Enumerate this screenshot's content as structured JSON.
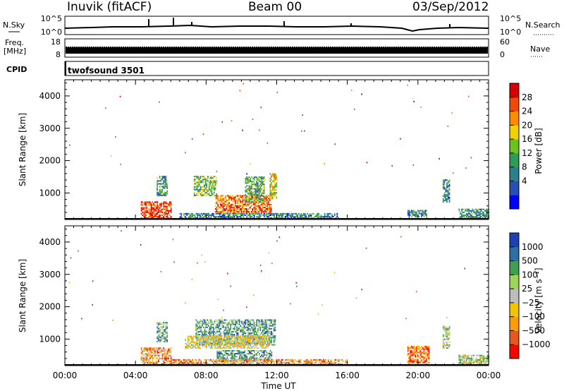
{
  "header": {
    "station": "Inuvik (fitACF)",
    "beam": "Beam 00",
    "date": "03/Sep/2012"
  },
  "noise_panel": {
    "left_label": "N.Sky",
    "left_ticks": [
      "10^5",
      "10^0"
    ],
    "right_ticks": [
      "10^5",
      "10^0"
    ],
    "right_label": "N.Search"
  },
  "freq_panel": {
    "left_label_line1": "Freq.",
    "left_label_line2": "[MHz]",
    "left_ticks": [
      "18",
      "8"
    ],
    "right_ticks": [
      "60",
      "0"
    ],
    "right_label": "Nave"
  },
  "cpid_panel": {
    "label": "CPID",
    "program": "twofsound 3501"
  },
  "time_axis": {
    "title": "Time UT",
    "hours": [
      0,
      4,
      8,
      12,
      16,
      20,
      24
    ],
    "labels": [
      "00:00",
      "04:00",
      "08:00",
      "12:00",
      "16:00",
      "20:00",
      "00:00"
    ]
  },
  "range_axis": {
    "title": "Slant Range [km]",
    "ticks": [
      1000,
      2000,
      3000,
      4000
    ],
    "tick_labels": [
      "1000",
      "2000",
      "3000",
      "4000"
    ],
    "range_km": [
      180,
      4500
    ]
  },
  "chart_data": [
    {
      "type": "heatmap",
      "quantity": "Power",
      "xlabel": "Time UT",
      "ylabel": "Slant Range [km]",
      "xlim_hours": [
        0,
        24
      ],
      "ylim_km": [
        180,
        4500
      ],
      "colorbar": {
        "title": "Power [dB]",
        "tick_labels": [
          "28",
          "24",
          "20",
          "16",
          "12",
          "8",
          "4"
        ],
        "colors": [
          "#0000ff",
          "#2a4fb4",
          "#2c7f8c",
          "#2d9d55",
          "#6cc21c",
          "#f4d000",
          "#ff8b00",
          "#f04a08",
          "#d80000"
        ]
      },
      "regions": [
        {
          "t": [
            4.3,
            6.0
          ],
          "r": [
            200,
            700
          ],
          "level": 0.9
        },
        {
          "t": [
            5.2,
            5.8
          ],
          "r": [
            900,
            1500
          ],
          "level": 0.35
        },
        {
          "t": [
            7.3,
            8.6
          ],
          "r": [
            900,
            1500
          ],
          "level": 0.45
        },
        {
          "t": [
            8.5,
            11.7
          ],
          "r": [
            350,
            900
          ],
          "level": 0.8
        },
        {
          "t": [
            10.2,
            11.3
          ],
          "r": [
            700,
            1500
          ],
          "level": 0.4
        },
        {
          "t": [
            11.6,
            12.0
          ],
          "r": [
            800,
            1600
          ],
          "level": 0.6
        },
        {
          "t": [
            6.5,
            15.5
          ],
          "r": [
            200,
            380
          ],
          "level": 0.3
        },
        {
          "t": [
            19.4,
            20.5
          ],
          "r": [
            250,
            450
          ],
          "level": 0.3
        },
        {
          "t": [
            21.4,
            21.8
          ],
          "r": [
            700,
            1400
          ],
          "level": 0.3
        },
        {
          "t": [
            22.3,
            24.0
          ],
          "r": [
            200,
            480
          ],
          "level": 0.35
        }
      ]
    },
    {
      "type": "heatmap",
      "quantity": "Velocity",
      "xlabel": "Time UT",
      "ylabel": "Slant Range [km]",
      "xlim_hours": [
        0,
        24
      ],
      "ylim_km": [
        180,
        4500
      ],
      "colorbar": {
        "title": "Velocity [m s⁻¹]",
        "tick_labels": [
          "1000",
          "500",
          "100",
          "25",
          "−25",
          "−100",
          "−500",
          "−1000"
        ],
        "colors": [
          "#ff0000",
          "#e8581a",
          "#ff9c00",
          "#f5c400",
          "#bdbdbd",
          "#9fd45a",
          "#3e9e52",
          "#2e6fa4",
          "#1f3fb4"
        ]
      },
      "regions": [
        {
          "t": [
            4.3,
            6.0
          ],
          "r": [
            200,
            700
          ],
          "level": 0.3
        },
        {
          "t": [
            5.2,
            5.8
          ],
          "r": [
            900,
            1500
          ],
          "level": 0.7
        },
        {
          "t": [
            7.4,
            11.9
          ],
          "r": [
            800,
            1600
          ],
          "level": 0.7
        },
        {
          "t": [
            6.8,
            11.5
          ],
          "r": [
            700,
            1100
          ],
          "level": 0.45
        },
        {
          "t": [
            8.6,
            11.7
          ],
          "r": [
            300,
            650
          ],
          "level": 0.75
        },
        {
          "t": [
            6.0,
            16.0
          ],
          "r": [
            200,
            350
          ],
          "level": 0.3
        },
        {
          "t": [
            19.4,
            20.6
          ],
          "r": [
            250,
            750
          ],
          "level": 0.2
        },
        {
          "t": [
            21.4,
            21.8
          ],
          "r": [
            700,
            1400
          ],
          "level": 0.6
        },
        {
          "t": [
            22.3,
            24.0
          ],
          "r": [
            200,
            480
          ],
          "level": 0.55
        }
      ]
    }
  ]
}
